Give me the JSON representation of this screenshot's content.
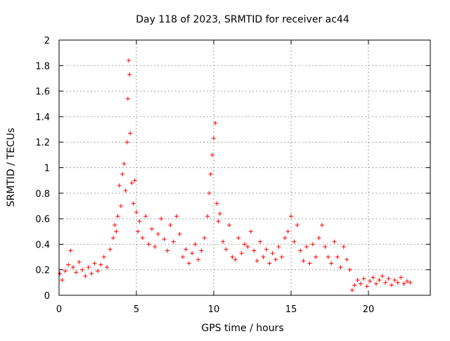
{
  "chart_data": {
    "type": "scatter",
    "title": "Day 118 of 2023, SRMTID for receiver ac44",
    "xlabel": "GPS time / hours",
    "ylabel": "SRMTID / TECUs",
    "xlim": [
      0,
      24
    ],
    "ylim": [
      0,
      2
    ],
    "x_ticks": [
      0,
      5,
      10,
      15,
      20
    ],
    "x_tick_labels": [
      "0",
      "5",
      "10",
      "15",
      "20"
    ],
    "y_ticks": [
      0,
      0.2,
      0.4,
      0.6,
      0.8,
      1,
      1.2,
      1.4,
      1.6,
      1.8,
      2
    ],
    "y_tick_labels": [
      "0",
      "0.2",
      "0.4",
      "0.6",
      "0.8",
      "1",
      "1.2",
      "1.4",
      "1.6",
      "1.8",
      "2"
    ],
    "grid": true,
    "marker": "+",
    "series": [
      {
        "name": "SRMTID",
        "color": "#ff0000",
        "x": [
          0.05,
          0.2,
          0.4,
          0.6,
          0.75,
          0.9,
          1.1,
          1.3,
          1.5,
          1.7,
          1.9,
          2.1,
          2.3,
          2.5,
          2.7,
          2.9,
          3.1,
          3.3,
          3.5,
          3.6,
          3.7,
          3.8,
          3.9,
          4.0,
          4.1,
          4.2,
          4.3,
          4.4,
          4.45,
          4.5,
          4.55,
          4.6,
          4.7,
          4.8,
          4.9,
          5.0,
          5.1,
          5.2,
          5.4,
          5.6,
          5.8,
          6.0,
          6.2,
          6.4,
          6.6,
          6.8,
          7.0,
          7.2,
          7.4,
          7.6,
          7.8,
          8.0,
          8.2,
          8.4,
          8.6,
          8.8,
          9.0,
          9.2,
          9.4,
          9.6,
          9.7,
          9.8,
          9.9,
          10.0,
          10.1,
          10.2,
          10.3,
          10.4,
          10.6,
          10.8,
          11.0,
          11.2,
          11.4,
          11.6,
          11.8,
          12.0,
          12.2,
          12.4,
          12.6,
          12.8,
          13.0,
          13.2,
          13.4,
          13.6,
          13.8,
          14.0,
          14.2,
          14.4,
          14.6,
          14.8,
          15.0,
          15.2,
          15.4,
          15.6,
          15.8,
          16.0,
          16.2,
          16.4,
          16.6,
          16.8,
          17.0,
          17.2,
          17.4,
          17.6,
          17.8,
          18.0,
          18.2,
          18.4,
          18.6,
          18.8,
          18.95,
          19.1,
          19.3,
          19.5,
          19.7,
          19.9,
          20.1,
          20.3,
          20.5,
          20.7,
          20.9,
          21.1,
          21.3,
          21.5,
          21.7,
          21.9,
          22.1,
          22.3,
          22.5,
          22.7
        ],
        "y": [
          0.17,
          0.12,
          0.19,
          0.24,
          0.35,
          0.22,
          0.18,
          0.26,
          0.2,
          0.15,
          0.22,
          0.17,
          0.25,
          0.19,
          0.24,
          0.3,
          0.22,
          0.36,
          0.45,
          0.55,
          0.5,
          0.62,
          0.86,
          0.7,
          0.95,
          1.03,
          0.82,
          1.2,
          1.54,
          1.84,
          1.73,
          1.27,
          0.88,
          0.72,
          0.9,
          0.65,
          0.5,
          0.58,
          0.45,
          0.62,
          0.4,
          0.52,
          0.38,
          0.48,
          0.6,
          0.44,
          0.35,
          0.55,
          0.42,
          0.62,
          0.48,
          0.3,
          0.36,
          0.25,
          0.33,
          0.4,
          0.28,
          0.35,
          0.45,
          0.62,
          0.8,
          0.95,
          1.1,
          1.23,
          1.35,
          0.72,
          0.58,
          0.64,
          0.42,
          0.36,
          0.55,
          0.3,
          0.28,
          0.45,
          0.33,
          0.4,
          0.38,
          0.5,
          0.35,
          0.27,
          0.42,
          0.3,
          0.36,
          0.25,
          0.33,
          0.28,
          0.38,
          0.3,
          0.45,
          0.5,
          0.62,
          0.42,
          0.55,
          0.35,
          0.27,
          0.38,
          0.25,
          0.4,
          0.3,
          0.45,
          0.55,
          0.38,
          0.3,
          0.25,
          0.42,
          0.3,
          0.22,
          0.38,
          0.28,
          0.2,
          0.04,
          0.08,
          0.12,
          0.09,
          0.13,
          0.07,
          0.11,
          0.14,
          0.09,
          0.12,
          0.15,
          0.1,
          0.13,
          0.08,
          0.12,
          0.1,
          0.14,
          0.09,
          0.11,
          0.1
        ]
      }
    ]
  }
}
